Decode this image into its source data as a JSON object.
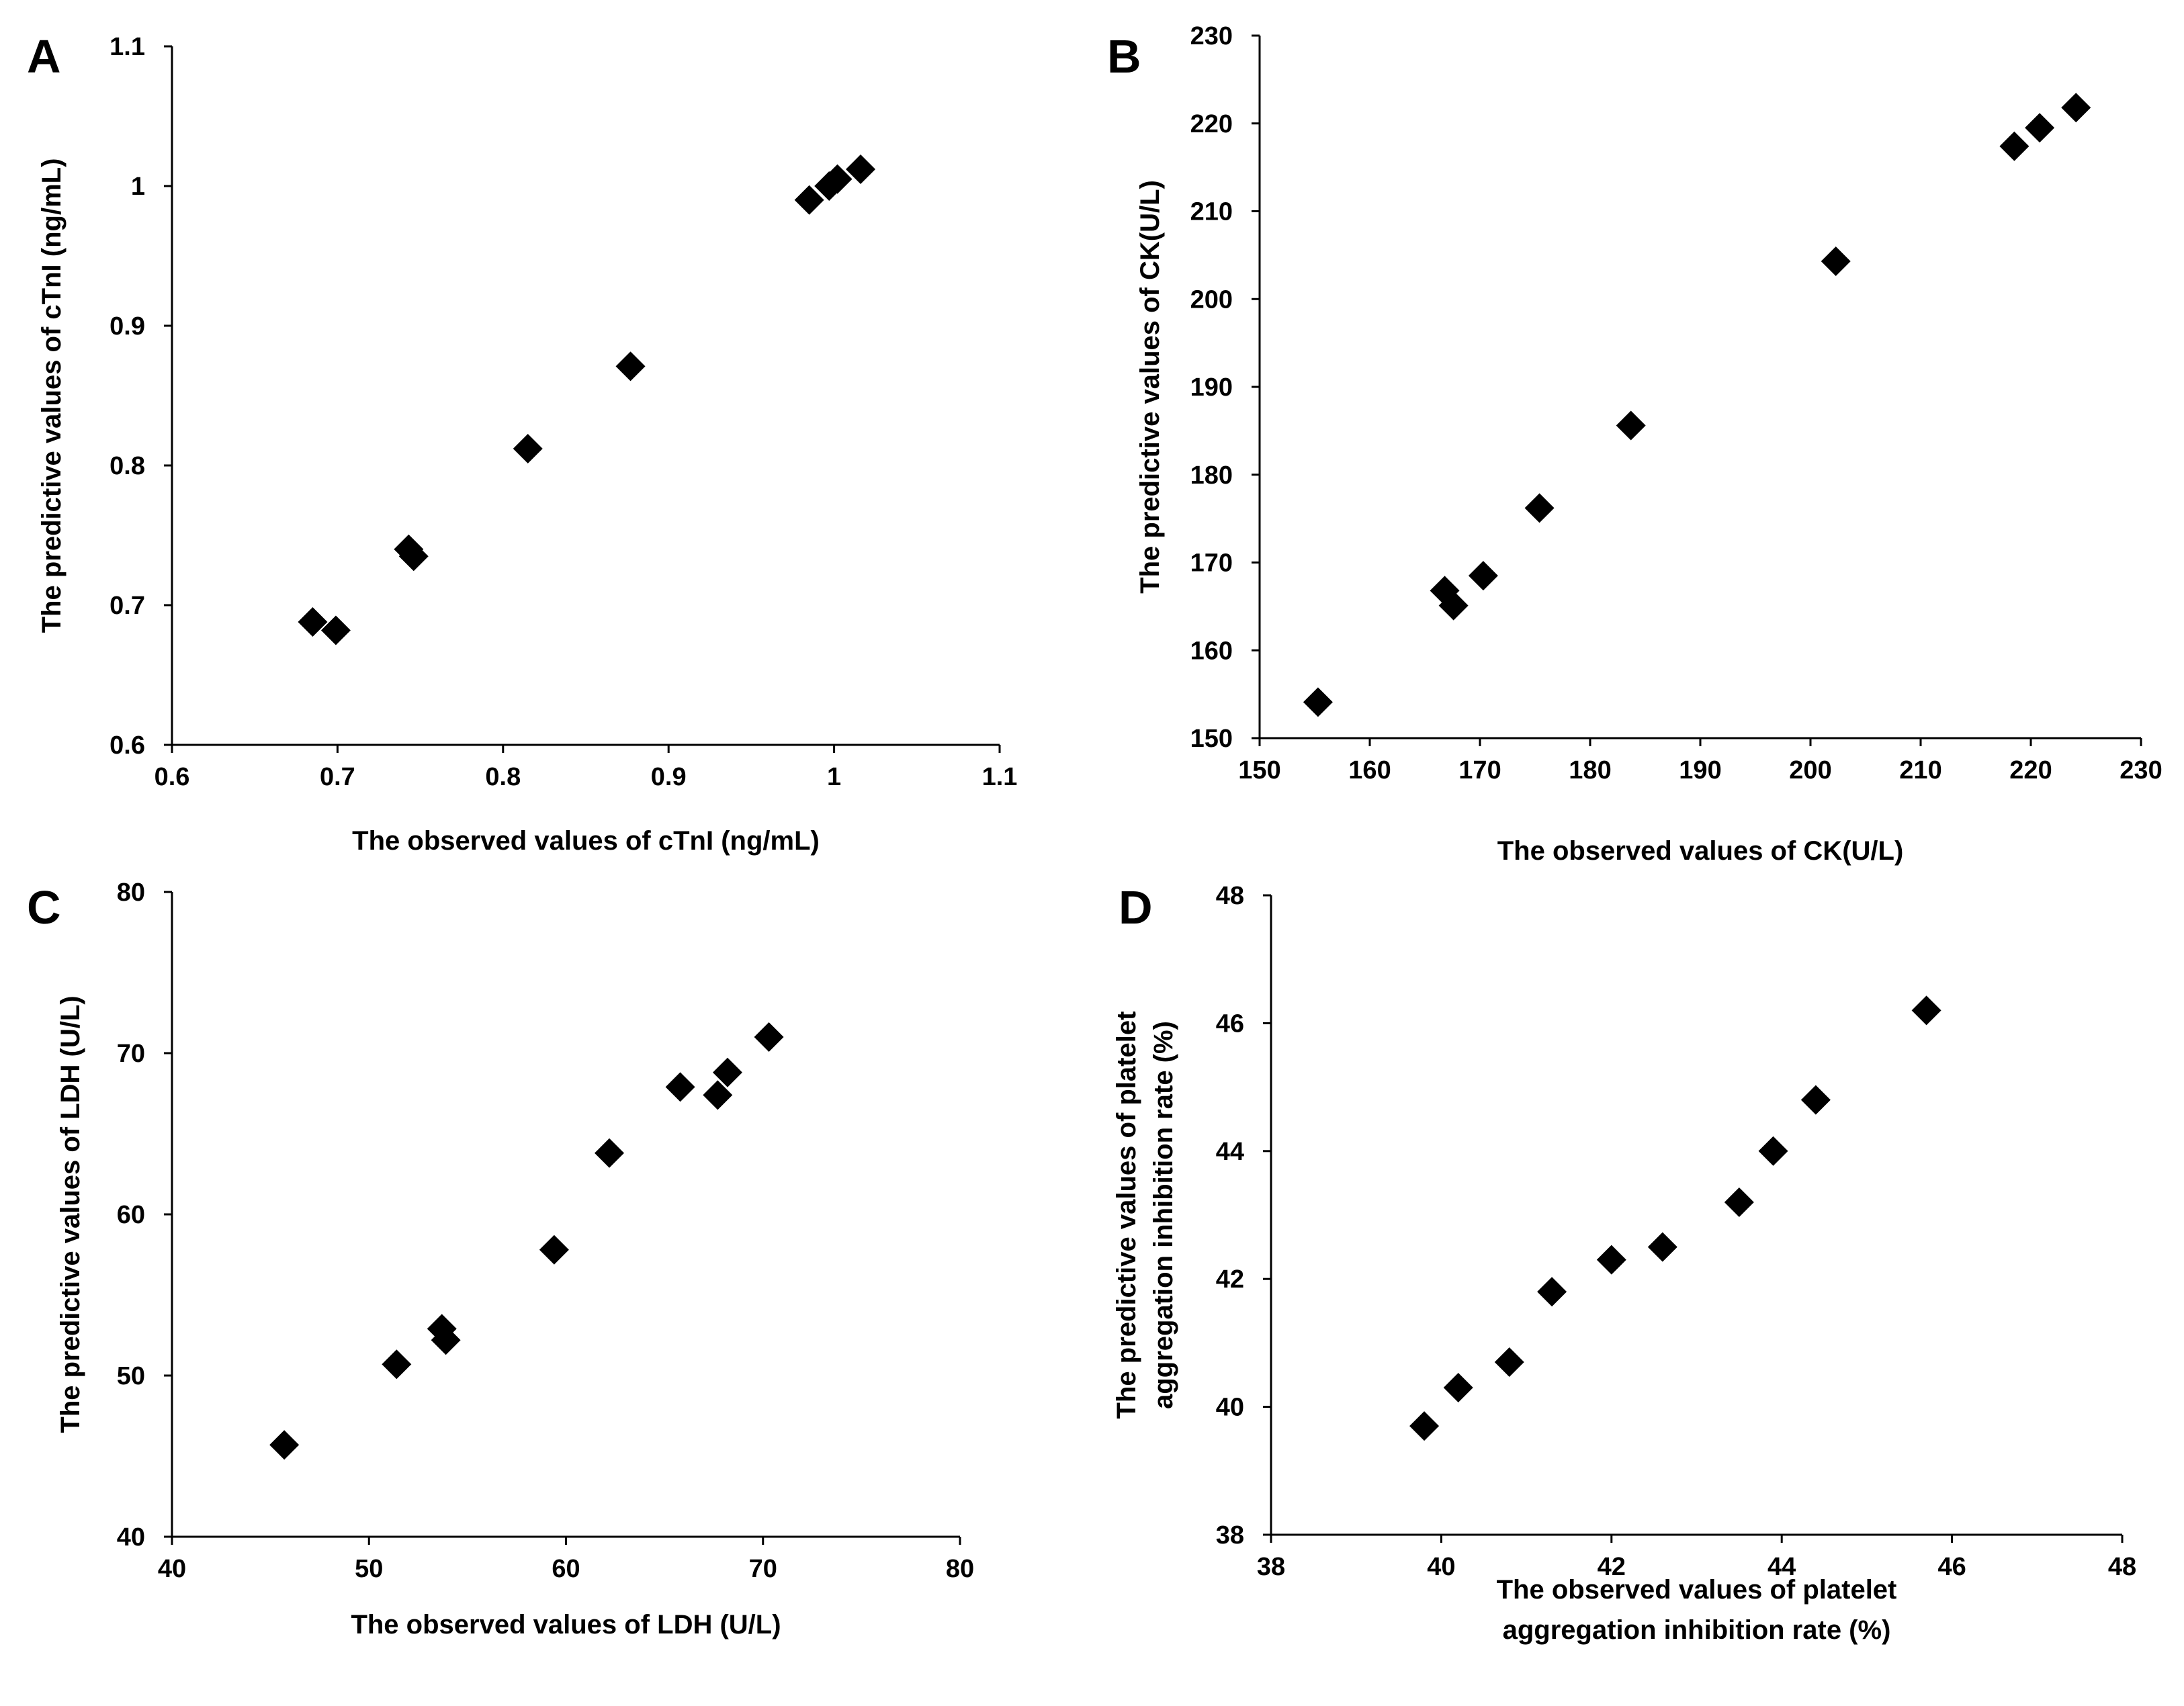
{
  "chart_data": [
    {
      "panel": "A",
      "type": "scatter",
      "xlabel": "The observed values of cTnI (ng/mL)",
      "ylabel": "The predictive values of cTnI (ng/mL)",
      "xlim": [
        0.6,
        1.1
      ],
      "ylim": [
        0.6,
        1.1
      ],
      "xticks": [
        0.6,
        0.7,
        0.8,
        0.9,
        1.0,
        1.1
      ],
      "yticks": [
        0.6,
        0.7,
        0.8,
        0.9,
        1.0,
        1.1
      ],
      "xtick_labels": [
        "0.6",
        "0.7",
        "0.8",
        "0.9",
        "1",
        "1.1"
      ],
      "ytick_labels": [
        "0.6",
        "0.7",
        "0.8",
        "0.9",
        "1",
        "1.1"
      ],
      "x": [
        0.685,
        0.699,
        0.743,
        0.746,
        0.815,
        0.877,
        0.985,
        0.997,
        1.002,
        1.016
      ],
      "y": [
        0.688,
        0.682,
        0.74,
        0.735,
        0.812,
        0.871,
        0.99,
        1.0,
        1.005,
        1.012
      ]
    },
    {
      "panel": "B",
      "type": "scatter",
      "xlabel": "The observed values of CK(U/L)",
      "ylabel": "The predictive values of CK(U/L)",
      "xlim": [
        150,
        230
      ],
      "ylim": [
        150,
        230
      ],
      "xticks": [
        150,
        160,
        170,
        180,
        190,
        200,
        210,
        220,
        230
      ],
      "yticks": [
        150,
        160,
        170,
        180,
        190,
        200,
        210,
        220,
        230
      ],
      "xtick_labels": [
        "150",
        "160",
        "170",
        "180",
        "190",
        "200",
        "210",
        "220",
        "230"
      ],
      "ytick_labels": [
        "150",
        "160",
        "170",
        "180",
        "190",
        "200",
        "210",
        "220",
        "230"
      ],
      "x": [
        155.3,
        166.8,
        167.6,
        170.3,
        175.4,
        183.7,
        202.3,
        218.5,
        220.8,
        224.1
      ],
      "y": [
        154.1,
        166.8,
        165.1,
        168.5,
        176.2,
        185.6,
        204.3,
        217.4,
        219.5,
        221.8
      ]
    },
    {
      "panel": "C",
      "type": "scatter",
      "xlabel": "The observed values of LDH (U/L)",
      "ylabel": "The predictive values of LDH (U/L)",
      "xlim": [
        40,
        80
      ],
      "ylim": [
        40,
        80
      ],
      "xticks": [
        40,
        50,
        60,
        70,
        80
      ],
      "yticks": [
        40,
        50,
        60,
        70,
        80
      ],
      "xtick_labels": [
        "40",
        "50",
        "60",
        "70",
        "80"
      ],
      "ytick_labels": [
        "40",
        "50",
        "60",
        "70",
        "80"
      ],
      "x": [
        45.7,
        51.4,
        53.7,
        53.9,
        59.4,
        62.2,
        65.8,
        67.7,
        68.2,
        70.3
      ],
      "y": [
        45.7,
        50.7,
        52.9,
        52.2,
        57.8,
        63.8,
        67.9,
        67.4,
        68.8,
        71.0
      ]
    },
    {
      "panel": "D",
      "type": "scatter",
      "xlabel": [
        "The observed values of platelet",
        "aggregation inhibition rate (%)"
      ],
      "ylabel": [
        "The predictive values of platelet",
        "aggregation inhibition rate (%)"
      ],
      "xlim": [
        38,
        48
      ],
      "ylim": [
        38,
        48
      ],
      "xticks": [
        38,
        40,
        42,
        44,
        46,
        48
      ],
      "yticks": [
        38,
        40,
        42,
        44,
        46,
        48
      ],
      "xtick_labels": [
        "38",
        "40",
        "42",
        "44",
        "46",
        "48"
      ],
      "ytick_labels": [
        "38",
        "40",
        "42",
        "44",
        "46",
        "48"
      ],
      "x": [
        39.8,
        40.2,
        40.8,
        41.3,
        42.0,
        42.6,
        43.5,
        43.9,
        44.4,
        45.7
      ],
      "y": [
        39.7,
        40.3,
        40.7,
        41.8,
        42.3,
        42.5,
        43.2,
        44.0,
        44.8,
        46.2
      ]
    }
  ]
}
